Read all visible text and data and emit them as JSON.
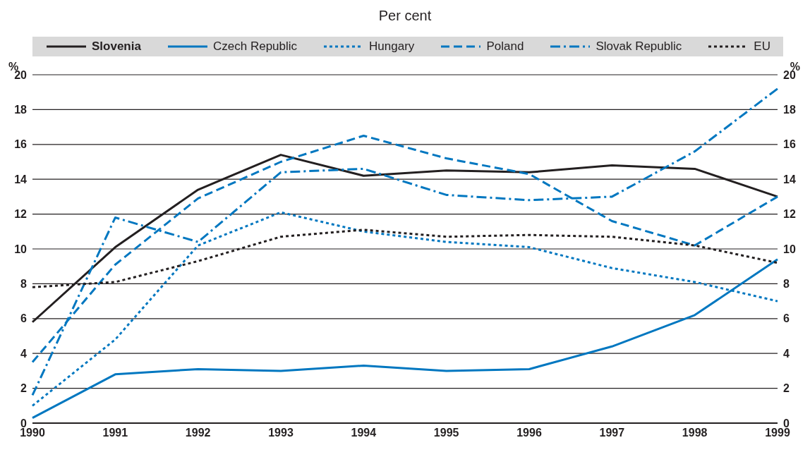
{
  "chart_data": {
    "type": "line",
    "subtitle": "Per cent",
    "ylabel": "%",
    "y2label": "%",
    "categories": [
      "1990",
      "1991",
      "1992",
      "1993",
      "1994",
      "1995",
      "1996",
      "1997",
      "1998",
      "1999"
    ],
    "series": [
      {
        "name": "Slovenia",
        "color": "#231f20",
        "line_style": "solid",
        "values": [
          5.8,
          10.1,
          13.4,
          15.4,
          14.2,
          14.5,
          14.4,
          14.8,
          14.6,
          13.0
        ]
      },
      {
        "name": "Czech Republic",
        "color": "#0077c0",
        "line_style": "solid",
        "values": [
          0.3,
          2.8,
          3.1,
          3.0,
          3.3,
          3.0,
          3.1,
          4.4,
          6.2,
          9.4
        ]
      },
      {
        "name": "Hungary",
        "color": "#0077c0",
        "line_style": "dotted",
        "values": [
          1.0,
          4.8,
          10.2,
          12.1,
          11.0,
          10.4,
          10.1,
          8.9,
          8.1,
          7.0
        ]
      },
      {
        "name": "Poland",
        "color": "#0077c0",
        "line_style": "dashed",
        "values": [
          3.5,
          9.1,
          12.9,
          15.0,
          16.5,
          15.2,
          14.3,
          11.6,
          10.2,
          13.0
        ]
      },
      {
        "name": "Slovak Republic",
        "color": "#0077c0",
        "line_style": "dashdot",
        "values": [
          1.6,
          11.8,
          10.4,
          14.4,
          14.6,
          13.1,
          12.8,
          13.0,
          15.6,
          19.2
        ]
      },
      {
        "name": "EU",
        "color": "#231f20",
        "line_style": "dotted",
        "values": [
          7.8,
          8.1,
          9.3,
          10.7,
          11.1,
          10.7,
          10.8,
          10.7,
          10.2,
          9.2
        ]
      }
    ],
    "ylim": [
      0,
      20
    ],
    "yticks": [
      0,
      2,
      4,
      6,
      8,
      10,
      12,
      14,
      16,
      18,
      20
    ],
    "y2lim": [
      0,
      20
    ],
    "y2ticks": [
      0,
      2,
      4,
      6,
      8,
      10,
      12,
      14,
      16,
      18,
      20
    ],
    "grid": "y",
    "legend": "top",
    "marker": "none"
  }
}
